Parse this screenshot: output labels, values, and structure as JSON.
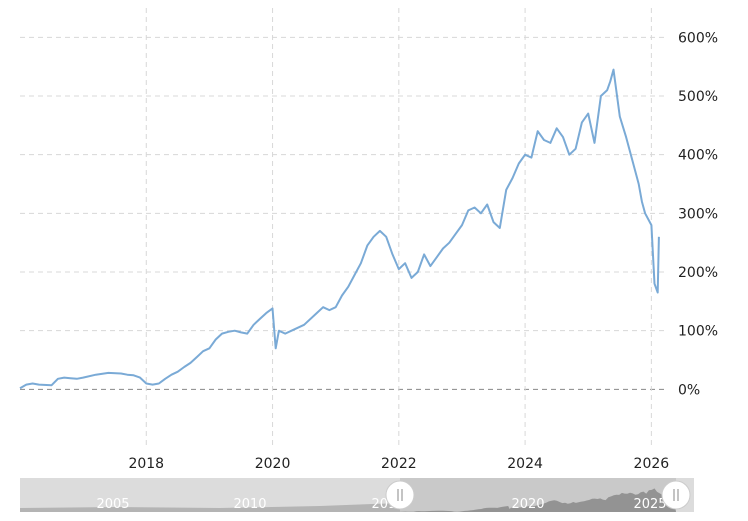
{
  "chart_data": {
    "type": "line",
    "title": "",
    "xlabel": "",
    "ylabel": "",
    "y_unit": "%",
    "xlim": [
      2016.0,
      2026.2
    ],
    "ylim": [
      -100,
      650
    ],
    "x_ticks": [
      "2018",
      "2020",
      "2022",
      "2024",
      "2026"
    ],
    "y_ticks": [
      "0%",
      "100%",
      "200%",
      "300%",
      "400%",
      "500%",
      "600%"
    ],
    "grid": true,
    "legend": "none",
    "line_color": "#7aaad6",
    "zero_line_color": "#888888",
    "series": [
      {
        "x": [
          2016.0,
          2016.1,
          2016.2,
          2016.3,
          2016.5,
          2016.6,
          2016.7,
          2016.8,
          2016.9,
          2017.0,
          2017.2,
          2017.4,
          2017.6,
          2017.7,
          2017.8,
          2017.9,
          2018.0,
          2018.1,
          2018.2,
          2018.3,
          2018.4,
          2018.5,
          2018.6,
          2018.7,
          2018.8,
          2018.9,
          2019.0,
          2019.1,
          2019.2,
          2019.3,
          2019.4,
          2019.5,
          2019.6,
          2019.7,
          2019.8,
          2019.9,
          2020.0,
          2020.05,
          2020.1,
          2020.2,
          2020.3,
          2020.5,
          2020.7,
          2020.8,
          2020.9,
          2021.0,
          2021.1,
          2021.2,
          2021.3,
          2021.4,
          2021.5,
          2021.6,
          2021.7,
          2021.8,
          2021.9,
          2022.0,
          2022.1,
          2022.2,
          2022.3,
          2022.4,
          2022.5,
          2022.6,
          2022.7,
          2022.8,
          2022.9,
          2023.0,
          2023.1,
          2023.2,
          2023.3,
          2023.4,
          2023.5,
          2023.6,
          2023.7,
          2023.8,
          2023.9,
          2024.0,
          2024.1,
          2024.2,
          2024.3,
          2024.4,
          2024.5,
          2024.6,
          2024.7,
          2024.8,
          2024.9,
          2025.0,
          2025.1,
          2025.2,
          2025.3,
          2025.35,
          2025.4,
          2025.5,
          2025.6,
          2025.7,
          2025.8,
          2025.85,
          2025.9,
          2026.0,
          2026.05,
          2026.1,
          2026.12
        ],
        "y": [
          2,
          8,
          10,
          8,
          7,
          18,
          20,
          19,
          18,
          20,
          25,
          28,
          27,
          25,
          24,
          20,
          10,
          8,
          10,
          18,
          25,
          30,
          38,
          45,
          55,
          65,
          70,
          85,
          95,
          98,
          100,
          97,
          95,
          110,
          120,
          130,
          138,
          70,
          100,
          95,
          100,
          110,
          130,
          140,
          135,
          140,
          160,
          175,
          195,
          215,
          245,
          260,
          270,
          260,
          230,
          205,
          215,
          190,
          200,
          230,
          210,
          225,
          240,
          250,
          265,
          280,
          305,
          310,
          300,
          315,
          285,
          275,
          340,
          360,
          385,
          400,
          395,
          440,
          425,
          420,
          445,
          430,
          400,
          410,
          455,
          470,
          420,
          500,
          510,
          525,
          545,
          465,
          430,
          390,
          350,
          320,
          300,
          280,
          180,
          165,
          260
        ]
      }
    ],
    "navigator": {
      "labels": [
        "2005",
        "2010",
        "2015",
        "2020",
        "2025"
      ]
    }
  }
}
